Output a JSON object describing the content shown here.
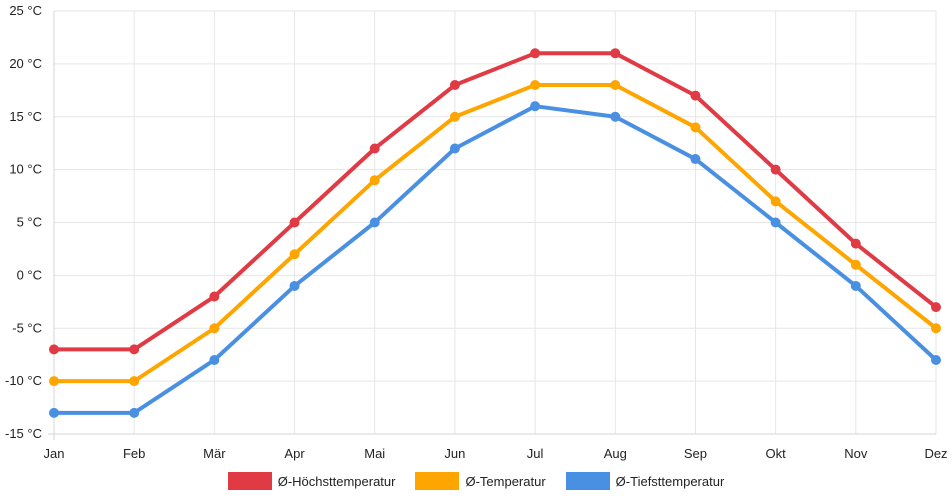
{
  "chart_data": {
    "type": "line",
    "title": "",
    "xlabel": "",
    "ylabel": "",
    "categories": [
      "Jan",
      "Feb",
      "Mär",
      "Apr",
      "Mai",
      "Jun",
      "Jul",
      "Aug",
      "Sep",
      "Okt",
      "Nov",
      "Dez"
    ],
    "ylim": [
      -15,
      25
    ],
    "yticks": [
      25,
      20,
      15,
      10,
      5,
      0,
      -5,
      -10,
      -15
    ],
    "ytick_labels": [
      "25 °C",
      "20 °C",
      "15 °C",
      "10 °C",
      "5 °C",
      "0 °C",
      "-5 °C",
      "-10 °C",
      "-15 °C"
    ],
    "grid": true,
    "legend_position": "bottom",
    "series": [
      {
        "name": "Ø-Höchsttemperatur",
        "color": "#e03a45",
        "values": [
          -7,
          -7,
          -2,
          5,
          12,
          18,
          21,
          21,
          17,
          10,
          3,
          -3
        ]
      },
      {
        "name": "Ø-Temperatur",
        "color": "#ffa500",
        "values": [
          -10,
          -10,
          -5,
          2,
          9,
          15,
          18,
          18,
          14,
          7,
          1,
          -5
        ]
      },
      {
        "name": "Ø-Tiefsttemperatur",
        "color": "#4a90e2",
        "values": [
          -13,
          -13,
          -8,
          -1,
          5,
          12,
          16,
          15,
          11,
          5,
          -1,
          -8
        ]
      }
    ]
  }
}
